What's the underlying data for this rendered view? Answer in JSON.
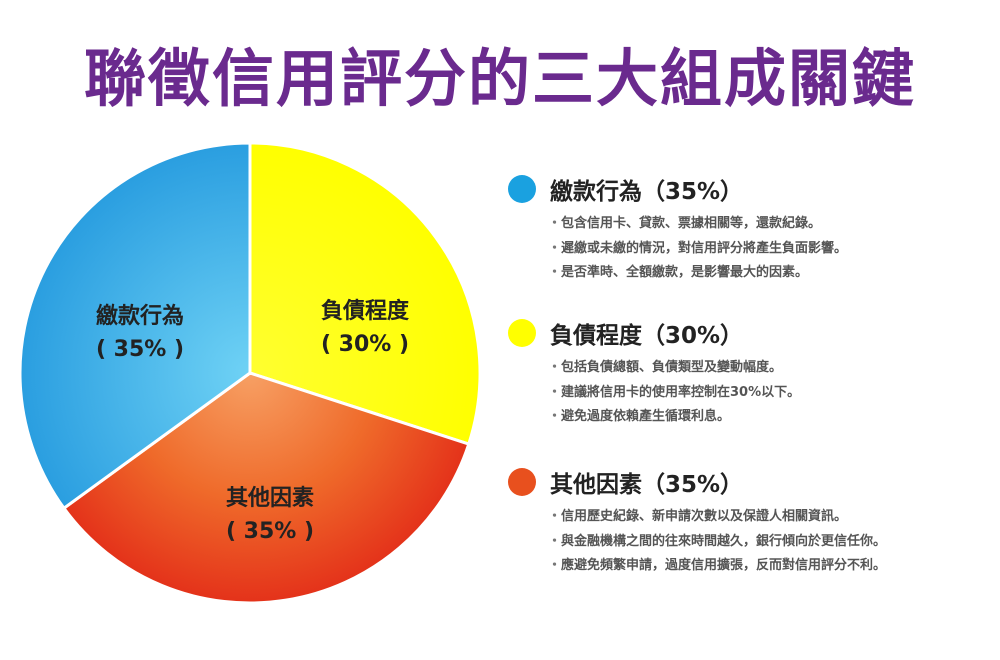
{
  "title": "聯徵信用評分的三大組成關鍵",
  "chart_data": {
    "type": "pie",
    "title": "聯徵信用評分的三大組成關鍵",
    "slices": [
      {
        "label": "繳款行為",
        "value": 35,
        "value_label": "( 35% )",
        "color": "#3fb0e8"
      },
      {
        "label": "負債程度",
        "value": 30,
        "value_label": "( 30% )",
        "color": "#ffff00"
      },
      {
        "label": "其他因素",
        "value": 35,
        "value_label": "( 35% )",
        "color": "#ec4a1e"
      }
    ]
  },
  "legend": [
    {
      "title": "繳款行為（35%）",
      "color": "#1aa1e0",
      "bullets": [
        "包含信用卡、貸款、票據相關等，還款紀錄。",
        "遲繳或未繳的情況，對信用評分將產生負面影響。",
        "是否準時、全額繳款，是影響最大的因素。"
      ]
    },
    {
      "title": "負債程度（30%）",
      "color": "#ffff00",
      "bullets": [
        "包括負債總額、負債類型及變動幅度。",
        "建議將信用卡的使用率控制在30%以下。",
        "避免過度依賴產生循環利息。"
      ]
    },
    {
      "title": "其他因素（35%）",
      "color": "#e8501e",
      "bullets": [
        "信用歷史紀錄、新申請次數以及保證人相關資訊。",
        "與金融機構之間的往來時間越久，銀行傾向於更信任你。",
        "應避免頻繁申請，過度信用擴張，反而對信用評分不利。"
      ]
    }
  ]
}
